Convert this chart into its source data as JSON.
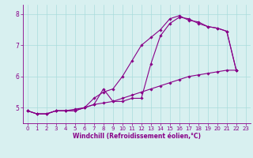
{
  "x": [
    0,
    1,
    2,
    3,
    4,
    5,
    6,
    7,
    8,
    9,
    10,
    11,
    12,
    13,
    14,
    15,
    16,
    17,
    18,
    19,
    20,
    21,
    22,
    23
  ],
  "line1": [
    4.9,
    4.8,
    4.8,
    4.9,
    4.9,
    4.9,
    5.0,
    5.1,
    5.6,
    5.2,
    5.2,
    5.3,
    5.3,
    6.4,
    7.3,
    7.7,
    7.9,
    7.85,
    7.7,
    7.6,
    7.55,
    7.45,
    6.2,
    null
  ],
  "line2": [
    4.9,
    4.8,
    4.8,
    4.9,
    4.9,
    4.9,
    5.0,
    5.3,
    5.5,
    5.6,
    6.0,
    6.5,
    7.0,
    7.25,
    7.5,
    7.85,
    7.95,
    7.8,
    7.75,
    7.6,
    7.55,
    7.45,
    6.2,
    null
  ],
  "line3": [
    4.9,
    4.8,
    4.8,
    4.9,
    4.9,
    4.95,
    5.0,
    5.1,
    5.15,
    5.2,
    5.3,
    5.4,
    5.5,
    5.6,
    5.7,
    5.8,
    5.9,
    6.0,
    6.05,
    6.1,
    6.15,
    6.2,
    6.2,
    null
  ],
  "line_color": "#880088",
  "bg_color": "#d8f0f0",
  "grid_color": "#aadcdc",
  "xlabel": "Windchill (Refroidissement éolien,°C)",
  "ylim": [
    4.5,
    8.3
  ],
  "xlim": [
    -0.5,
    23.5
  ],
  "yticks": [
    5,
    6,
    7,
    8
  ],
  "xticks": [
    0,
    1,
    2,
    3,
    4,
    5,
    6,
    7,
    8,
    9,
    10,
    11,
    12,
    13,
    14,
    15,
    16,
    17,
    18,
    19,
    20,
    21,
    22,
    23
  ],
  "tick_fontsize": 5.0,
  "xlabel_fontsize": 5.5,
  "marker": "D",
  "marker_size": 1.8,
  "line_width": 0.8
}
